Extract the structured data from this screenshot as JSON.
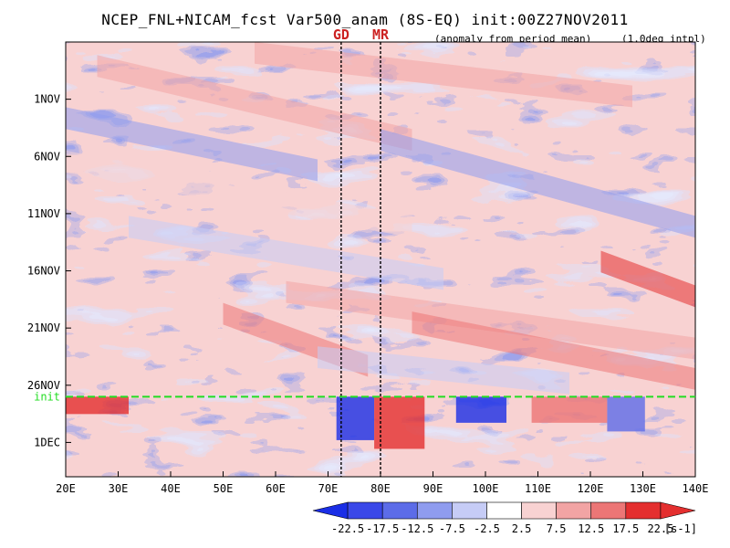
{
  "title": "NCEP_FNL+NICAM_fcst Var500_anam (8S-EQ) init:00Z27NOV2011",
  "subtitle_left": "(anomaly from period mean)",
  "subtitle_right": "(1.0deg intpl)",
  "colors": {
    "neg_strong": "#1a2ee6",
    "neg_mid": "#5c6ce8",
    "neg_light": "#8f9cef",
    "neg_pale": "#c6ccf6",
    "neutral": "#ffffff",
    "pos_pale": "#f8d2d2",
    "pos_light": "#f2a4a4",
    "pos_mid": "#ec7676",
    "pos_strong": "#e42f2f",
    "init_line": "#22dd22",
    "site_line": "#000000",
    "site_label": "#cc2222"
  },
  "chart_data": {
    "type": "heatmap",
    "title": "NCEP_FNL+NICAM_fcst Var500_anam (8S-EQ) init:00Z27NOV2011",
    "x_ticks": [
      "20E",
      "30E",
      "40E",
      "50E",
      "60E",
      "70E",
      "80E",
      "90E",
      "100E",
      "110E",
      "120E",
      "130E",
      "140E"
    ],
    "x_range": [
      20,
      140
    ],
    "y_ticks": [
      "1NOV",
      "6NOV",
      "11NOV",
      "16NOV",
      "21NOV",
      "26NOV",
      "1DEC"
    ],
    "y_range": [
      "27OCT2011",
      "04DEC2011"
    ],
    "init_label": "init",
    "init_date": "27NOV2011",
    "sites": [
      {
        "label": "GD",
        "lon": 72.5
      },
      {
        "label": "MR",
        "lon": 80
      }
    ],
    "colorbar": {
      "labels": [
        "-22.5",
        "-17.5",
        "-12.5",
        "-7.5",
        "-2.5",
        "2.5",
        "7.5",
        "12.5",
        "17.5",
        "22.5"
      ],
      "unit": "[s-1]",
      "colors": [
        "#1a2ee6",
        "#3a48e8",
        "#5c6ce8",
        "#8f9cef",
        "#c6ccf6",
        "#ffffff",
        "#f8d2d2",
        "#f2a4a4",
        "#ec7676",
        "#e42f2f",
        "#e42f2f"
      ]
    }
  }
}
